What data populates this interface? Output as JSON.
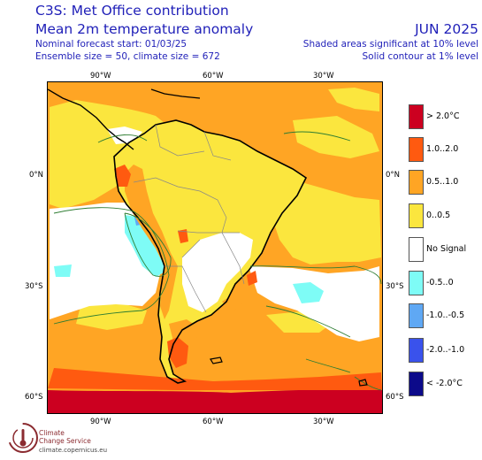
{
  "header": {
    "title": "C3S: Met Office contribution",
    "subtitle": "Mean 2m temperature anomaly",
    "forecast_start": "Nominal forecast start: 01/03/25",
    "ensemble": "Ensemble size = 50, climate size = 672",
    "period": "JUN 2025",
    "note1": "Shaded areas significant at 10% level",
    "note2": "Solid contour at 1% level"
  },
  "axes": {
    "top_lon": [
      "90°W",
      "60°W",
      "30°W"
    ],
    "bottom_lon": [
      "90°W",
      "60°W",
      "30°W"
    ],
    "left_lat": [
      "0°N",
      "30°S",
      "60°S"
    ],
    "right_lat": [
      "0°N",
      "30°S",
      "60°S"
    ]
  },
  "legend": [
    {
      "label": "> 2.0°C",
      "color": "#cc0020"
    },
    {
      "label": "1.0..2.0",
      "color": "#ff5a10"
    },
    {
      "label": "0.5..1.0",
      "color": "#ffa524"
    },
    {
      "label": "0..0.5",
      "color": "#fbe63e"
    },
    {
      "label": "No Signal",
      "color": "#ffffff"
    },
    {
      "label": "-0.5..0",
      "color": "#7efcf6"
    },
    {
      "label": "-1.0..-0.5",
      "color": "#5fa8f4"
    },
    {
      "label": "-2.0..-1.0",
      "color": "#3a52ec"
    },
    {
      "label": "< -2.0°C",
      "color": "#0c0a8a"
    }
  ],
  "branding": {
    "logo_name": "copernicus-climate-logo",
    "line1": "Climate",
    "line2": "Change Service",
    "url": "climate.copernicus.eu"
  }
}
